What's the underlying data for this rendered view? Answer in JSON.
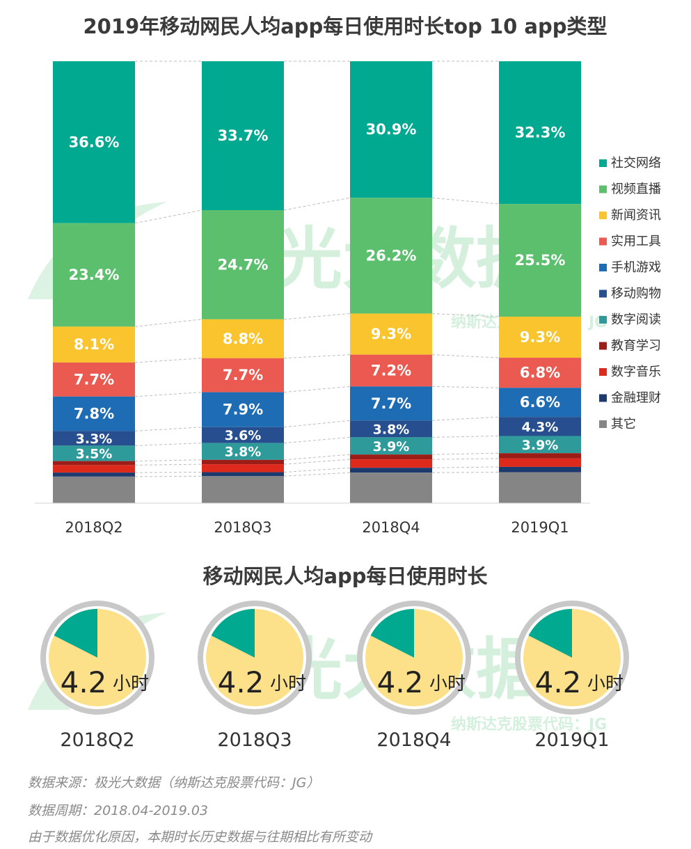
{
  "chart_data": [
    {
      "type": "bar",
      "stacked": true,
      "title": "2019年移动网民人均app每日使用时长top 10 app类型",
      "categories": [
        "2018Q2",
        "2018Q3",
        "2018Q4",
        "2019Q1"
      ],
      "series": [
        {
          "name": "社交网络",
          "color": "#00a98f",
          "values": [
            36.6,
            33.7,
            30.9,
            32.3
          ],
          "labels": [
            "36.6%",
            "33.7%",
            "30.9%",
            "32.3%"
          ]
        },
        {
          "name": "视频直播",
          "color": "#5cbf6e",
          "values": [
            23.4,
            24.7,
            26.2,
            25.5
          ],
          "labels": [
            "23.4%",
            "24.7%",
            "26.2%",
            "25.5%"
          ]
        },
        {
          "name": "新闻资讯",
          "color": "#f9c42d",
          "values": [
            8.1,
            8.8,
            9.3,
            9.3
          ],
          "labels": [
            "8.1%",
            "8.8%",
            "9.3%",
            "9.3%"
          ]
        },
        {
          "name": "实用工具",
          "color": "#ea5a50",
          "values": [
            7.7,
            7.7,
            7.2,
            6.8
          ],
          "labels": [
            "7.7%",
            "7.7%",
            "7.2%",
            "6.8%"
          ]
        },
        {
          "name": "手机游戏",
          "color": "#1e6cb4",
          "values": [
            7.8,
            7.9,
            7.7,
            6.6
          ],
          "labels": [
            "7.8%",
            "7.9%",
            "7.7%",
            "6.6%"
          ]
        },
        {
          "name": "移动购物",
          "color": "#274f8f",
          "values": [
            3.3,
            3.6,
            3.8,
            4.3
          ],
          "labels": [
            "3.3%",
            "3.6%",
            "3.8%",
            "4.3%"
          ]
        },
        {
          "name": "数字阅读",
          "color": "#2e9a9a",
          "values": [
            3.5,
            3.8,
            3.9,
            3.9
          ],
          "labels": [
            "3.5%",
            "3.8%",
            "3.9%",
            "3.9%"
          ]
        },
        {
          "name": "教育学习",
          "color": "#9c1d17",
          "values": [
            0.9,
            1.0,
            1.1,
            1.2
          ],
          "labels": [
            "",
            "",
            "",
            ""
          ]
        },
        {
          "name": "数字音乐",
          "color": "#dd2a1c",
          "values": [
            1.7,
            1.8,
            1.9,
            1.9
          ],
          "labels": [
            "",
            "",
            "",
            ""
          ]
        },
        {
          "name": "金融理财",
          "color": "#1d3a6e",
          "values": [
            0.9,
            0.9,
            1.1,
            1.2
          ],
          "labels": [
            "",
            "",
            "",
            ""
          ]
        },
        {
          "name": "其它",
          "color": "#858585",
          "values": [
            6.0,
            6.1,
            6.9,
            7.0
          ],
          "labels": [
            "",
            "",
            "",
            ""
          ]
        }
      ],
      "ylim": [
        0,
        100
      ],
      "grid": false,
      "legend": "right"
    },
    {
      "type": "pie",
      "title": "移动网民人均app每日使用时长",
      "categories": [
        "2018Q2",
        "2018Q3",
        "2018Q4",
        "2019Q1"
      ],
      "values": [
        4.2,
        4.2,
        4.2,
        4.2
      ],
      "value_labels": [
        "4.2",
        "4.2",
        "4.2",
        "4.2"
      ],
      "unit": "小时",
      "scale_max": 24,
      "colors": {
        "slice": "#00a98f",
        "rest": "#fde08a",
        "ring": "#c8c8c8"
      }
    }
  ],
  "watermark": {
    "brand": "极光大数据",
    "sub": "纳斯达克股票代码：JG"
  },
  "footnotes": [
    "数据来源：极光大数据（纳斯达克股票代码：JG）",
    "数据周期：2018.04-2019.03",
    "由于数据优化原因，本期时长历史数据与往期相比有所变动"
  ]
}
